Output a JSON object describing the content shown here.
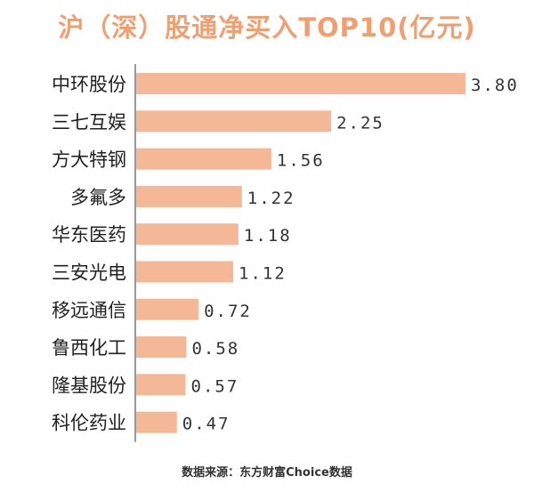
{
  "chart_data": {
    "type": "bar",
    "orientation": "horizontal",
    "title": "沪（深）股通净买入TOP10(亿元)",
    "categories": [
      "中环股份",
      "三七互娱",
      "方大特钢",
      "多氟多",
      "华东医药",
      "三安光电",
      "移远通信",
      "鲁西化工",
      "隆基股份",
      "科伦药业"
    ],
    "values": [
      3.8,
      2.25,
      1.56,
      1.22,
      1.18,
      1.12,
      0.72,
      0.58,
      0.57,
      0.47
    ],
    "value_labels": [
      "3.80",
      "2.25",
      "1.56",
      "1.22",
      "1.18",
      "1.12",
      "0.72",
      "0.58",
      "0.57",
      "0.47"
    ],
    "xlim": [
      0,
      3.8
    ],
    "grid": false,
    "legend": "none",
    "colors": {
      "bar": "#f4b896",
      "title": "#f0a070",
      "axis": "#555555"
    }
  },
  "source": "数据来源：东方财富Choice数据"
}
